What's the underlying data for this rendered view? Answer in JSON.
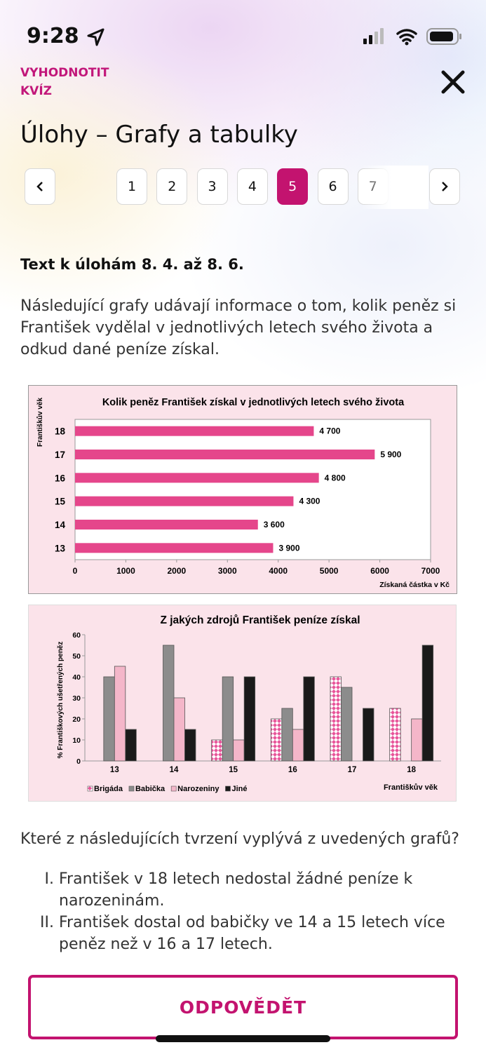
{
  "status_bar": {
    "time": "9:28"
  },
  "header": {
    "action": "VYHODNOTIT KVÍZ",
    "title": "Úlohy – Grafy a tabulky"
  },
  "pagination": {
    "pages": [
      "1",
      "2",
      "3",
      "4",
      "5",
      "6",
      "7"
    ],
    "active": "5"
  },
  "content": {
    "heading": "Text k úlohám 8. 4. až 8. 6.",
    "intro": "Následující grafy udávají informace o tom, kolik peněz si František vydělal v jednotlivých letech svého života a odkud dané peníze získal.",
    "question": "Které z následujících tvrzení vyplývá z uvedených grafů?",
    "statements": [
      "František v 18 letech nedostal žádné peníze k narozeninám.",
      "František dostal od babičky ve 14 a 15 letech více peněz než v 16 a 17 letech."
    ]
  },
  "chart_data": [
    {
      "type": "barh",
      "title": "Kolik peněz František získal v jednotlivých letech svého života",
      "y_label": "Františkův věk",
      "x_label": "Získaná částka v Kč",
      "categories": [
        "18",
        "17",
        "16",
        "15",
        "14",
        "13"
      ],
      "values": [
        4700,
        5900,
        4800,
        4300,
        3600,
        3900
      ],
      "value_labels": [
        "4 700",
        "5 900",
        "4 800",
        "4 300",
        "3 600",
        "3 900"
      ],
      "color": "#e5468b",
      "xlim": [
        0,
        7000
      ],
      "xticks": [
        0,
        1000,
        2000,
        3000,
        4000,
        5000,
        6000,
        7000
      ]
    },
    {
      "type": "bar",
      "title": "Z jakých zdrojů František peníze získal",
      "y_label": "% Františkových ušetřených peněz",
      "x_label": "Františkův věk",
      "categories": [
        "13",
        "14",
        "15",
        "16",
        "17",
        "18"
      ],
      "series": [
        {
          "name": "Brigáda",
          "color": "#e8559a",
          "pattern": "checker",
          "values": [
            null,
            null,
            10,
            20,
            40,
            25
          ]
        },
        {
          "name": "Babička",
          "color": "#8c8c8c",
          "values": [
            40,
            55,
            40,
            25,
            35,
            null
          ]
        },
        {
          "name": "Narozeniny",
          "color": "#f4b6c9",
          "values": [
            45,
            30,
            10,
            15,
            null,
            20
          ]
        },
        {
          "name": "Jiné",
          "color": "#1a1a1a",
          "values": [
            15,
            15,
            40,
            40,
            25,
            55
          ]
        }
      ],
      "ylim": [
        0,
        60
      ],
      "yticks": [
        0,
        10,
        20,
        30,
        40,
        50,
        60
      ],
      "legend": "bottom-left"
    }
  ],
  "button": "ODPOVĚDĚT"
}
